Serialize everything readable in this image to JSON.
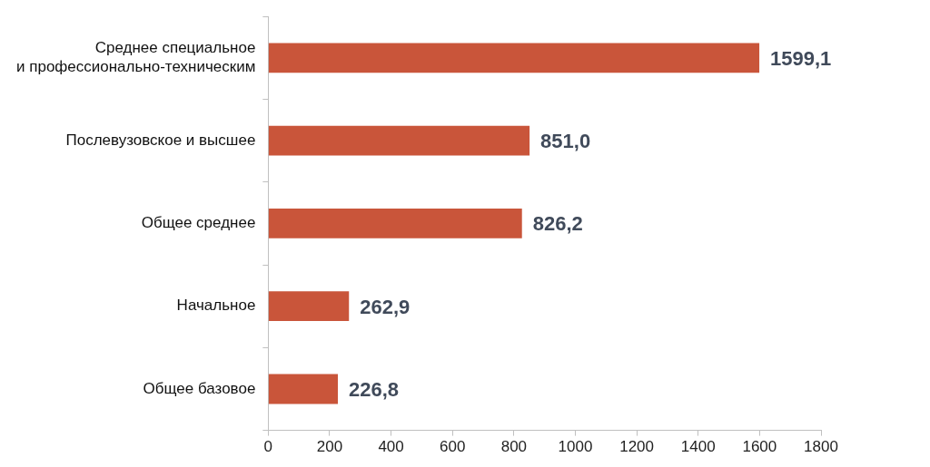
{
  "chart_data": {
    "type": "bar",
    "orientation": "horizontal",
    "categories": [
      "Среднее специальное\nи профессионально-техническим",
      "Послевузовское и высшее",
      "Общее среднее",
      "Начальное",
      "Общее базовое"
    ],
    "values": [
      1599.1,
      851.0,
      826.2,
      262.9,
      226.8
    ],
    "value_labels": [
      "1599,1",
      "851,0",
      "826,2",
      "262,9",
      "226,8"
    ],
    "data_labels": true,
    "color": "#c9553a",
    "xlim": [
      0,
      1800
    ],
    "xticks": [
      0,
      200,
      400,
      600,
      800,
      1000,
      1200,
      1400,
      1600,
      1800
    ],
    "grid": false
  }
}
